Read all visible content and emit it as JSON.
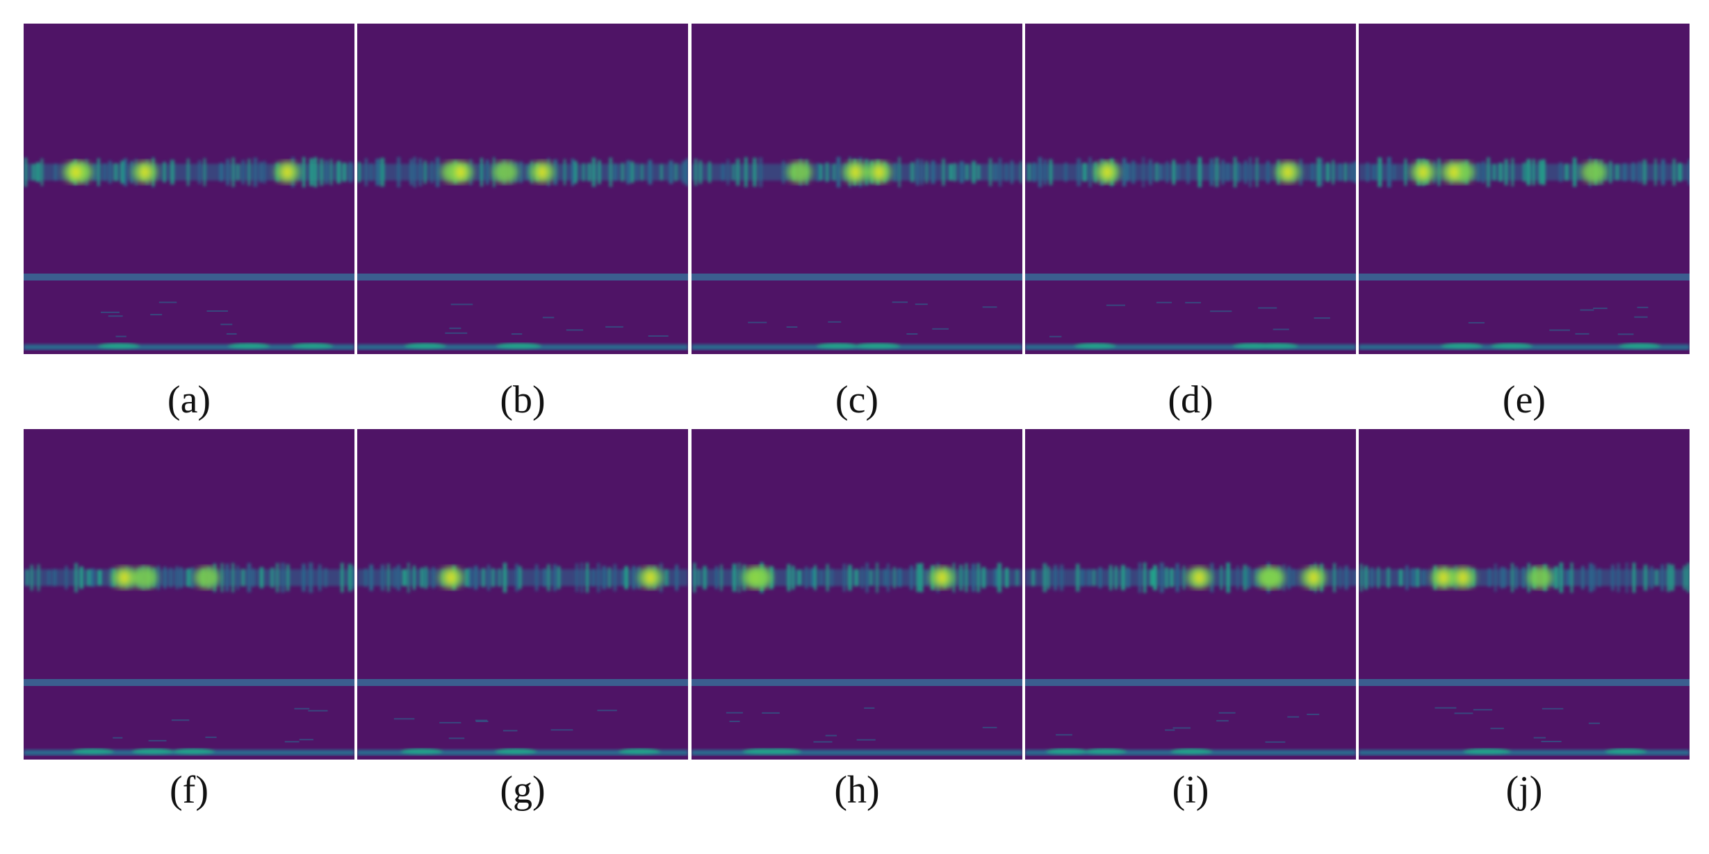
{
  "colors": {
    "background": "#4f1466",
    "mid_line": "#3b5e8f",
    "band_low": "#2a6b8f",
    "band_mid": "#21a38a",
    "band_high": "#7fd34e",
    "peak": "#e2e419"
  },
  "panels": [
    {
      "caption": "(a)",
      "letter": "a"
    },
    {
      "caption": "(b)",
      "letter": "b"
    },
    {
      "caption": "(c)",
      "letter": "c"
    },
    {
      "caption": "(d)",
      "letter": "d"
    },
    {
      "caption": "(e)",
      "letter": "e"
    },
    {
      "caption": "(f)",
      "letter": "f"
    },
    {
      "caption": "(g)",
      "letter": "g"
    },
    {
      "caption": "(h)",
      "letter": "h"
    },
    {
      "caption": "(i)",
      "letter": "i"
    },
    {
      "caption": "(j)",
      "letter": "j"
    }
  ]
}
